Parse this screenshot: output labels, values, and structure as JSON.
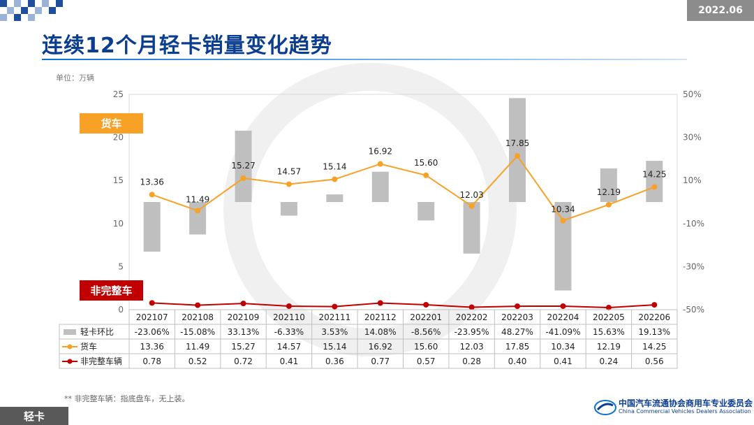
{
  "header": {
    "date_tag": "2022.06",
    "title": "连续12个月轻卡销量变化趋势",
    "unit": "单位：万辆"
  },
  "tags": {
    "truck": "货车",
    "incomplete": "非完整车"
  },
  "footer": {
    "note": "** 非完整车辆：指底盘车，无上装。",
    "tab": "轻卡",
    "org_cn": "中国汽车流通协会商用车专业委员会",
    "org_en": "China Commercial Vehicles Dealers Association"
  },
  "chart_data": {
    "type": "bar",
    "categories": [
      "202107",
      "202108",
      "202109",
      "202110",
      "202111",
      "202112",
      "202201",
      "202202",
      "202203",
      "202204",
      "202205",
      "202206"
    ],
    "series": [
      {
        "name": "轻卡环比",
        "kind": "bar",
        "axis": "right",
        "unit": "%",
        "color": "#bfbfbf",
        "values": [
          -23.06,
          -15.08,
          33.13,
          -6.33,
          3.53,
          14.08,
          -8.56,
          -23.95,
          48.27,
          -41.09,
          15.63,
          19.13
        ],
        "labels": [
          "-23.06%",
          "-15.08%",
          "33.13%",
          "-6.33%",
          "3.53%",
          "14.08%",
          "-8.56%",
          "-23.95%",
          "48.27%",
          "-41.09%",
          "15.63%",
          "19.13%"
        ]
      },
      {
        "name": "货车",
        "kind": "line",
        "axis": "left",
        "color": "#f7a126",
        "values": [
          13.36,
          11.49,
          15.27,
          14.57,
          15.14,
          16.92,
          15.6,
          12.03,
          17.85,
          10.34,
          12.19,
          14.25
        ],
        "labels": [
          "13.36",
          "11.49",
          "15.27",
          "14.57",
          "15.14",
          "16.92",
          "15.60",
          "12.03",
          "17.85",
          "10.34",
          "12.19",
          "14.25"
        ]
      },
      {
        "name": "非完整车辆",
        "kind": "line",
        "axis": "left",
        "color": "#c00000",
        "values": [
          0.78,
          0.52,
          0.72,
          0.41,
          0.36,
          0.77,
          0.57,
          0.28,
          0.4,
          0.41,
          0.24,
          0.56
        ],
        "labels": [
          "0.78",
          "0.52",
          "0.72",
          "0.41",
          "0.36",
          "0.77",
          "0.57",
          "0.28",
          "0.40",
          "0.41",
          "0.24",
          "0.56"
        ]
      }
    ],
    "y_left": {
      "ylim": [
        0,
        25
      ],
      "ticks": [
        "0",
        "5",
        "10",
        "15",
        "20",
        "25"
      ],
      "tick_values": [
        0,
        5,
        10,
        15,
        20,
        25
      ]
    },
    "y_right": {
      "ylim": [
        -50,
        50
      ],
      "ticks": [
        "-50%",
        "-30%",
        "-10%",
        "10%",
        "30%",
        "50%"
      ],
      "tick_values": [
        -50,
        -30,
        -10,
        10,
        30,
        50
      ]
    },
    "grid": false,
    "legend": "data-table-below"
  }
}
